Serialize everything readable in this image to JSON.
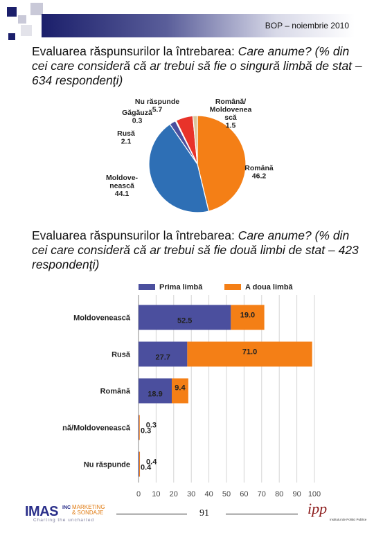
{
  "header": {
    "text": "BOP – noiembrie 2010"
  },
  "headings": [
    {
      "lead": "Evaluarea răspunsurilor la întrebarea:",
      "rest": " Care anume? (% din cei care consideră că ar trebui să fie o singură limbă de stat – 634 respondenţi)"
    },
    {
      "lead": "Evaluarea răspunsurilor la întrebarea:",
      "rest": " Care anume? (% din cei care consideră că ar trebui să fie două limbi de stat – 423 respondenţi)"
    }
  ],
  "chart_data": [
    {
      "type": "pie",
      "slices": [
        {
          "label": "Română",
          "value": 46.2,
          "color": "#f47f16"
        },
        {
          "label": "Moldove-nească",
          "value": 44.1,
          "color": "#2e6fb5"
        },
        {
          "label": "Rusă",
          "value": 2.1,
          "color": "#4b4f9e"
        },
        {
          "label": "Găgăuză",
          "value": 0.3,
          "color": "#7ab648"
        },
        {
          "label": "Nu răspunde",
          "value": 5.7,
          "color": "#e8332a"
        },
        {
          "label": "Română/ Moldovenea scă",
          "value": 1.5,
          "color": "#d9c79b"
        }
      ],
      "slice_labels": [
        {
          "lines": [
            "Nu răspunde",
            "5.7"
          ]
        },
        {
          "lines": [
            "Română/",
            "Moldovenea",
            "scă",
            "1.5"
          ]
        },
        {
          "lines": [
            "Găgăuză",
            "0.3"
          ]
        },
        {
          "lines": [
            "Rusă",
            "2.1"
          ]
        },
        {
          "lines": [
            "Română",
            "46.2"
          ]
        },
        {
          "lines": [
            "Moldove-",
            "nească",
            "44.1"
          ]
        }
      ]
    },
    {
      "type": "bar",
      "orientation": "horizontal",
      "stacked": true,
      "categories": [
        "Moldovenească",
        "Rusă",
        "Română",
        "Română/Moldovenească",
        "Nu răspunde"
      ],
      "series": [
        {
          "name": "Prima limbă",
          "values": [
            52.5,
            27.7,
            18.9,
            0.3,
            0.4
          ],
          "color": "#4b4f9e"
        },
        {
          "name": "A doua limbă",
          "values": [
            19.0,
            71.0,
            9.4,
            0.3,
            0.4
          ],
          "color": "#f47f16"
        }
      ],
      "xlim": [
        0,
        100
      ],
      "xticks": [
        "0",
        "10",
        "20",
        "30",
        "40",
        "50",
        "60",
        "70",
        "80",
        "90",
        "100"
      ],
      "grid": true,
      "legend": "top"
    }
  ],
  "footer": {
    "logo_main": "IMAS",
    "logo_inc": "INC",
    "logo_sub1": "MARKETING",
    "logo_sub2": "& SONDAJE",
    "logo_tag": "Charting the uncharted",
    "page_number": "91",
    "ipp_mark": "ipp",
    "ipp_text": "Institutul de Politici Publice"
  }
}
